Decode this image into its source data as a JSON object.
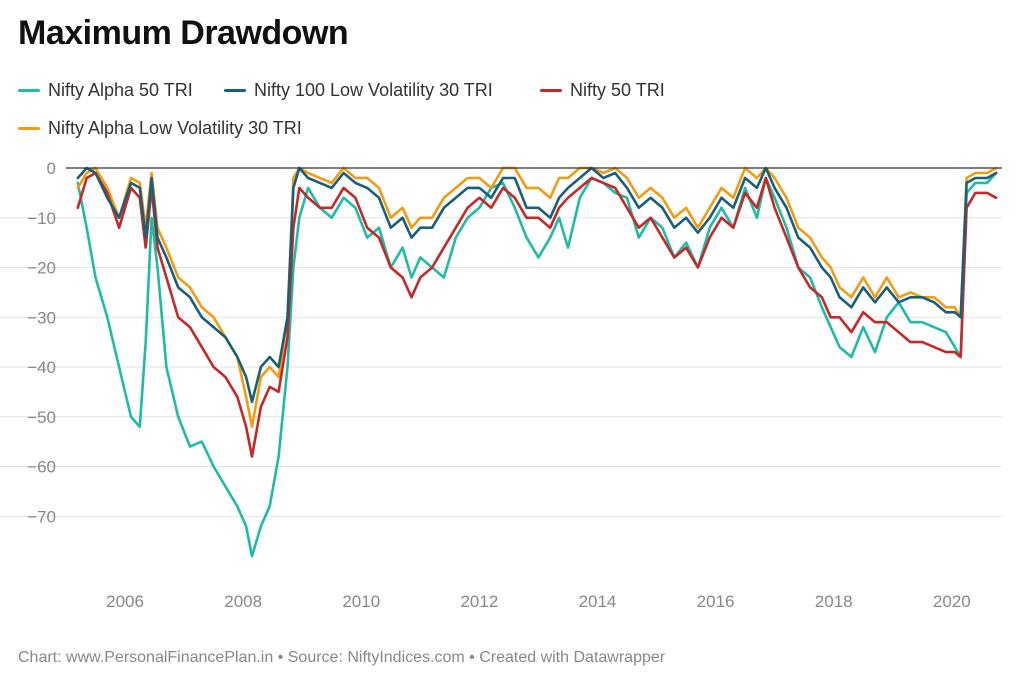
{
  "title": "Maximum Drawdown",
  "footer": {
    "chart_credit": "Chart: www.PersonalFinancePlan.in",
    "source": "Source: NiftyIndices.com",
    "created_with": "Created with Datawrapper",
    "separator": "•"
  },
  "colors": {
    "alpha50": "#1fbba6",
    "lowvol100": "#1a5f7a",
    "nifty50": "#c62828",
    "alphalowvol": "#f39c12",
    "grid": "#e2e2e2",
    "zero_line": "#333333",
    "tick_label": "#888888"
  },
  "chart_data": {
    "type": "line",
    "xlabel": "",
    "ylabel": "",
    "xlim": [
      2005.0,
      2020.85
    ],
    "ylim": [
      -80,
      0
    ],
    "y_ticks": [
      0,
      -10,
      -20,
      -30,
      -40,
      -50,
      -60,
      -70
    ],
    "y_tick_labels": [
      "0",
      "−10",
      "−20",
      "−30",
      "−40",
      "−50",
      "−60",
      "−70"
    ],
    "x_ticks": [
      2006,
      2008,
      2010,
      2012,
      2014,
      2016,
      2018,
      2020
    ],
    "x_tick_labels": [
      "2006",
      "2008",
      "2010",
      "2012",
      "2014",
      "2016",
      "2018",
      "2020"
    ],
    "grid": true,
    "legend_position": "top-left",
    "series": [
      {
        "name": "Nifty Alpha 50 TRI",
        "color_key": "alpha50",
        "x": [
          2005.2,
          2005.35,
          2005.5,
          2005.7,
          2005.9,
          2006.1,
          2006.25,
          2006.35,
          2006.45,
          2006.55,
          2006.7,
          2006.9,
          2007.1,
          2007.3,
          2007.5,
          2007.7,
          2007.9,
          2008.05,
          2008.15,
          2008.3,
          2008.45,
          2008.6,
          2008.75,
          2008.85,
          2008.95,
          2009.1,
          2009.3,
          2009.5,
          2009.7,
          2009.9,
          2010.1,
          2010.3,
          2010.5,
          2010.7,
          2010.85,
          2011.0,
          2011.2,
          2011.4,
          2011.6,
          2011.8,
          2012.0,
          2012.2,
          2012.4,
          2012.6,
          2012.8,
          2013.0,
          2013.2,
          2013.35,
          2013.5,
          2013.7,
          2013.9,
          2014.1,
          2014.3,
          2014.5,
          2014.7,
          2014.9,
          2015.1,
          2015.3,
          2015.5,
          2015.7,
          2015.9,
          2016.1,
          2016.3,
          2016.5,
          2016.7,
          2016.85,
          2017.0,
          2017.2,
          2017.4,
          2017.6,
          2017.8,
          2017.95,
          2018.1,
          2018.3,
          2018.5,
          2018.7,
          2018.9,
          2019.1,
          2019.3,
          2019.5,
          2019.7,
          2019.9,
          2020.05,
          2020.15,
          2020.25,
          2020.4,
          2020.6,
          2020.75
        ],
        "values": [
          -3,
          -12,
          -22,
          -30,
          -40,
          -50,
          -52,
          -35,
          -10,
          -20,
          -40,
          -50,
          -56,
          -55,
          -60,
          -64,
          -68,
          -72,
          -78,
          -72,
          -68,
          -58,
          -40,
          -20,
          -10,
          -4,
          -8,
          -10,
          -6,
          -8,
          -14,
          -12,
          -20,
          -16,
          -22,
          -18,
          -20,
          -22,
          -14,
          -10,
          -8,
          -4,
          -3,
          -8,
          -14,
          -18,
          -14,
          -10,
          -16,
          -6,
          -2,
          -3,
          -5,
          -6,
          -14,
          -10,
          -12,
          -18,
          -15,
          -20,
          -12,
          -8,
          -12,
          -4,
          -10,
          -2,
          -6,
          -12,
          -20,
          -22,
          -28,
          -32,
          -36,
          -38,
          -32,
          -37,
          -30,
          -27,
          -31,
          -31,
          -32,
          -33,
          -36,
          -38,
          -5,
          -3,
          -3,
          -1
        ]
      },
      {
        "name": "Nifty 100 Low Volatility 30 TRI",
        "color_key": "lowvol100",
        "x": [
          2005.2,
          2005.35,
          2005.5,
          2005.7,
          2005.9,
          2006.1,
          2006.25,
          2006.35,
          2006.45,
          2006.55,
          2006.7,
          2006.9,
          2007.1,
          2007.3,
          2007.5,
          2007.7,
          2007.9,
          2008.05,
          2008.15,
          2008.3,
          2008.45,
          2008.6,
          2008.75,
          2008.85,
          2008.95,
          2009.1,
          2009.3,
          2009.5,
          2009.7,
          2009.9,
          2010.1,
          2010.3,
          2010.5,
          2010.7,
          2010.85,
          2011.0,
          2011.2,
          2011.4,
          2011.6,
          2011.8,
          2012.0,
          2012.2,
          2012.4,
          2012.6,
          2012.8,
          2013.0,
          2013.2,
          2013.35,
          2013.5,
          2013.7,
          2013.9,
          2014.1,
          2014.3,
          2014.5,
          2014.7,
          2014.9,
          2015.1,
          2015.3,
          2015.5,
          2015.7,
          2015.9,
          2016.1,
          2016.3,
          2016.5,
          2016.7,
          2016.85,
          2017.0,
          2017.2,
          2017.4,
          2017.6,
          2017.8,
          2017.95,
          2018.1,
          2018.3,
          2018.5,
          2018.7,
          2018.9,
          2019.1,
          2019.3,
          2019.5,
          2019.7,
          2019.9,
          2020.05,
          2020.15,
          2020.25,
          2020.4,
          2020.6,
          2020.75
        ],
        "values": [
          -2,
          0,
          -1,
          -6,
          -10,
          -3,
          -4,
          -14,
          -2,
          -14,
          -18,
          -24,
          -26,
          -30,
          -32,
          -34,
          -38,
          -42,
          -47,
          -40,
          -38,
          -40,
          -30,
          -4,
          0,
          -2,
          -3,
          -4,
          -1,
          -3,
          -4,
          -6,
          -12,
          -10,
          -14,
          -12,
          -12,
          -8,
          -6,
          -4,
          -4,
          -6,
          -2,
          -2,
          -8,
          -8,
          -10,
          -6,
          -4,
          -2,
          0,
          -2,
          -1,
          -4,
          -8,
          -6,
          -8,
          -12,
          -10,
          -13,
          -10,
          -6,
          -8,
          -2,
          -4,
          0,
          -4,
          -8,
          -14,
          -16,
          -20,
          -22,
          -26,
          -28,
          -24,
          -27,
          -24,
          -27,
          -26,
          -26,
          -27,
          -29,
          -29,
          -30,
          -3,
          -2,
          -2,
          -1
        ]
      },
      {
        "name": "Nifty 50 TRI",
        "color_key": "nifty50",
        "x": [
          2005.2,
          2005.35,
          2005.5,
          2005.7,
          2005.9,
          2006.1,
          2006.25,
          2006.35,
          2006.45,
          2006.55,
          2006.7,
          2006.9,
          2007.1,
          2007.3,
          2007.5,
          2007.7,
          2007.9,
          2008.05,
          2008.15,
          2008.3,
          2008.45,
          2008.6,
          2008.75,
          2008.85,
          2008.95,
          2009.1,
          2009.3,
          2009.5,
          2009.7,
          2009.9,
          2010.1,
          2010.3,
          2010.5,
          2010.7,
          2010.85,
          2011.0,
          2011.2,
          2011.4,
          2011.6,
          2011.8,
          2012.0,
          2012.2,
          2012.4,
          2012.6,
          2012.8,
          2013.0,
          2013.2,
          2013.35,
          2013.5,
          2013.7,
          2013.9,
          2014.1,
          2014.3,
          2014.5,
          2014.7,
          2014.9,
          2015.1,
          2015.3,
          2015.5,
          2015.7,
          2015.9,
          2016.1,
          2016.3,
          2016.5,
          2016.7,
          2016.85,
          2017.0,
          2017.2,
          2017.4,
          2017.6,
          2017.8,
          2017.95,
          2018.1,
          2018.3,
          2018.5,
          2018.7,
          2018.9,
          2019.1,
          2019.3,
          2019.5,
          2019.7,
          2019.9,
          2020.05,
          2020.15,
          2020.25,
          2020.4,
          2020.6,
          2020.75
        ],
        "values": [
          -8,
          -2,
          -1,
          -5,
          -12,
          -4,
          -6,
          -16,
          -4,
          -16,
          -22,
          -30,
          -32,
          -36,
          -40,
          -42,
          -46,
          -52,
          -58,
          -48,
          -44,
          -45,
          -34,
          -12,
          -4,
          -6,
          -8,
          -8,
          -4,
          -6,
          -12,
          -14,
          -20,
          -22,
          -26,
          -22,
          -20,
          -16,
          -12,
          -8,
          -6,
          -8,
          -4,
          -6,
          -10,
          -10,
          -12,
          -8,
          -6,
          -4,
          -2,
          -3,
          -4,
          -8,
          -12,
          -10,
          -14,
          -18,
          -16,
          -20,
          -14,
          -10,
          -12,
          -5,
          -8,
          -2,
          -8,
          -14,
          -20,
          -24,
          -26,
          -30,
          -30,
          -33,
          -29,
          -31,
          -31,
          -33,
          -35,
          -35,
          -36,
          -37,
          -37,
          -38,
          -8,
          -5,
          -5,
          -6
        ]
      },
      {
        "name": "Nifty Alpha Low Volatility 30 TRI",
        "color_key": "alphalowvol",
        "x": [
          2005.2,
          2005.35,
          2005.5,
          2005.7,
          2005.9,
          2006.1,
          2006.25,
          2006.35,
          2006.45,
          2006.55,
          2006.7,
          2006.9,
          2007.1,
          2007.3,
          2007.5,
          2007.7,
          2007.9,
          2008.05,
          2008.15,
          2008.3,
          2008.45,
          2008.6,
          2008.75,
          2008.85,
          2008.95,
          2009.1,
          2009.3,
          2009.5,
          2009.7,
          2009.9,
          2010.1,
          2010.3,
          2010.5,
          2010.7,
          2010.85,
          2011.0,
          2011.2,
          2011.4,
          2011.6,
          2011.8,
          2012.0,
          2012.2,
          2012.4,
          2012.6,
          2012.8,
          2013.0,
          2013.2,
          2013.35,
          2013.5,
          2013.7,
          2013.9,
          2014.1,
          2014.3,
          2014.5,
          2014.7,
          2014.9,
          2015.1,
          2015.3,
          2015.5,
          2015.7,
          2015.9,
          2016.1,
          2016.3,
          2016.5,
          2016.7,
          2016.85,
          2017.0,
          2017.2,
          2017.4,
          2017.6,
          2017.8,
          2017.95,
          2018.1,
          2018.3,
          2018.5,
          2018.7,
          2018.9,
          2019.1,
          2019.3,
          2019.5,
          2019.7,
          2019.9,
          2020.05,
          2020.15,
          2020.25,
          2020.4,
          2020.6,
          2020.75
        ],
        "values": [
          -4,
          -1,
          0,
          -4,
          -10,
          -2,
          -3,
          -12,
          -1,
          -12,
          -16,
          -22,
          -24,
          -28,
          -30,
          -34,
          -38,
          -46,
          -52,
          -42,
          -40,
          -42,
          -30,
          -2,
          0,
          -1,
          -2,
          -3,
          0,
          -2,
          -2,
          -4,
          -10,
          -8,
          -12,
          -10,
          -10,
          -6,
          -4,
          -2,
          -2,
          -4,
          0,
          0,
          -4,
          -4,
          -6,
          -2,
          -2,
          0,
          0,
          -1,
          0,
          -2,
          -6,
          -4,
          -6,
          -10,
          -8,
          -12,
          -8,
          -4,
          -6,
          0,
          -2,
          0,
          -2,
          -6,
          -12,
          -14,
          -18,
          -20,
          -24,
          -26,
          -22,
          -26,
          -22,
          -26,
          -25,
          -26,
          -26,
          -28,
          -28,
          -30,
          -2,
          -1,
          -1,
          0
        ]
      }
    ]
  }
}
